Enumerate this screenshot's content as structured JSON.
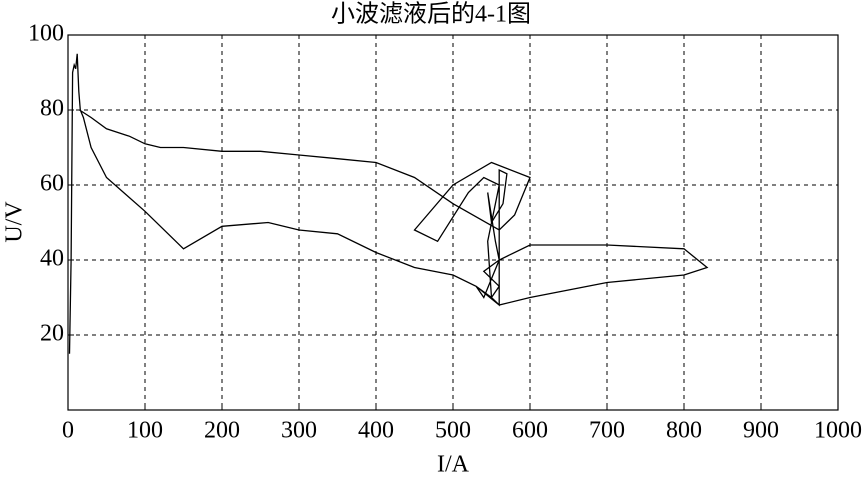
{
  "chart_data": {
    "type": "line",
    "title": "小波滤液后的4-1图",
    "xlabel": "I/A",
    "ylabel": "U/V",
    "xlim": [
      0,
      1000
    ],
    "ylim": [
      0,
      100
    ],
    "xticks": [
      0,
      100,
      200,
      300,
      400,
      500,
      600,
      700,
      800,
      900,
      1000
    ],
    "yticks": [
      20,
      40,
      60,
      80,
      100
    ],
    "grid": true,
    "series": [
      {
        "color": "#000000",
        "x": [
          2,
          4,
          6,
          8,
          10,
          12,
          14,
          16,
          20,
          30,
          50,
          100,
          150,
          200,
          260,
          300,
          350,
          400,
          450,
          500,
          530,
          550,
          560,
          560,
          570,
          565,
          550,
          545,
          555,
          560,
          550,
          540,
          530,
          560,
          600,
          650,
          700,
          800,
          830,
          800,
          700,
          600,
          560,
          540,
          560,
          550,
          545,
          555,
          560,
          540,
          520,
          480,
          450,
          500,
          550,
          600,
          580,
          560,
          500,
          450,
          400,
          350,
          300,
          250,
          200,
          150,
          120,
          100,
          80,
          50,
          30,
          15
        ],
        "values": [
          15,
          40,
          90,
          92,
          91,
          95,
          85,
          80,
          78,
          70,
          62,
          53,
          43,
          49,
          50,
          48,
          47,
          42,
          38,
          36,
          33,
          30,
          28,
          64,
          63,
          55,
          50,
          58,
          45,
          40,
          35,
          30,
          33,
          28,
          30,
          32,
          34,
          36,
          38,
          43,
          44,
          44,
          40,
          37,
          33,
          30,
          45,
          55,
          60,
          62,
          58,
          45,
          48,
          60,
          66,
          62,
          52,
          48,
          55,
          62,
          66,
          67,
          68,
          69,
          69,
          70,
          70,
          71,
          73,
          75,
          78,
          80
        ]
      }
    ]
  }
}
